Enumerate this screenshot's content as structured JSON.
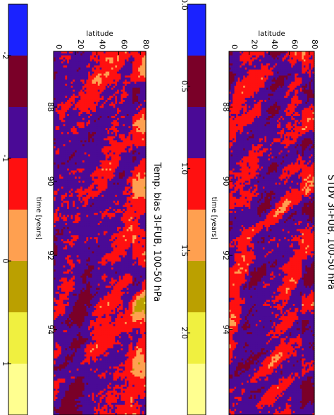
{
  "chart_data": [
    {
      "type": "heatmap",
      "title": "STDV 3I-FUB, 100-50 hPa",
      "xlabel": "time [years]",
      "ylabel": "latitude",
      "x_ticks": [
        "88",
        "90",
        "92",
        "94"
      ],
      "y_ticks": [
        "0",
        "20",
        "40",
        "60",
        "80"
      ],
      "xlim": [
        86.5,
        96.3
      ],
      "ylim": [
        0,
        85
      ],
      "colorbar": {
        "ticks": [
          "0.0",
          "0.5",
          "1.0",
          "1.5",
          "2.0"
        ],
        "range": [
          0.0,
          2.5
        ],
        "levels": [
          0.0,
          0.3333,
          0.6667,
          1.0,
          1.3333,
          1.6667,
          2.0,
          2.3333
        ]
      },
      "palette": [
        "#1a22ff",
        "#7a0028",
        "#4a0a96",
        "#ff1010",
        "#ffa050",
        "#bba000",
        "#f0f040",
        "#ffff90"
      ],
      "seed": 7,
      "bias": 0.0
    },
    {
      "type": "heatmap",
      "title": "Temp. bias 3I-FUB, 100-50 hPa",
      "xlabel": "time [years]",
      "ylabel": "latitude",
      "x_ticks": [
        "88",
        "90",
        "92",
        "94"
      ],
      "y_ticks": [
        "0",
        "20",
        "40",
        "60",
        "80"
      ],
      "xlim": [
        86.5,
        96.3
      ],
      "ylim": [
        0,
        85
      ],
      "colorbar": {
        "ticks": [
          "-2",
          "-1",
          "0",
          "1"
        ],
        "range": [
          -2.5,
          1.5
        ],
        "levels": [
          -2.5,
          -2.0,
          -1.5,
          -1.0,
          -0.5,
          0.0,
          0.5,
          1.0
        ]
      },
      "palette": [
        "#1a22ff",
        "#7a0028",
        "#4a0a96",
        "#ff1010",
        "#ffa050",
        "#bba000",
        "#f0f040",
        "#ffff90"
      ],
      "seed": 19,
      "bias": 1.4
    }
  ]
}
